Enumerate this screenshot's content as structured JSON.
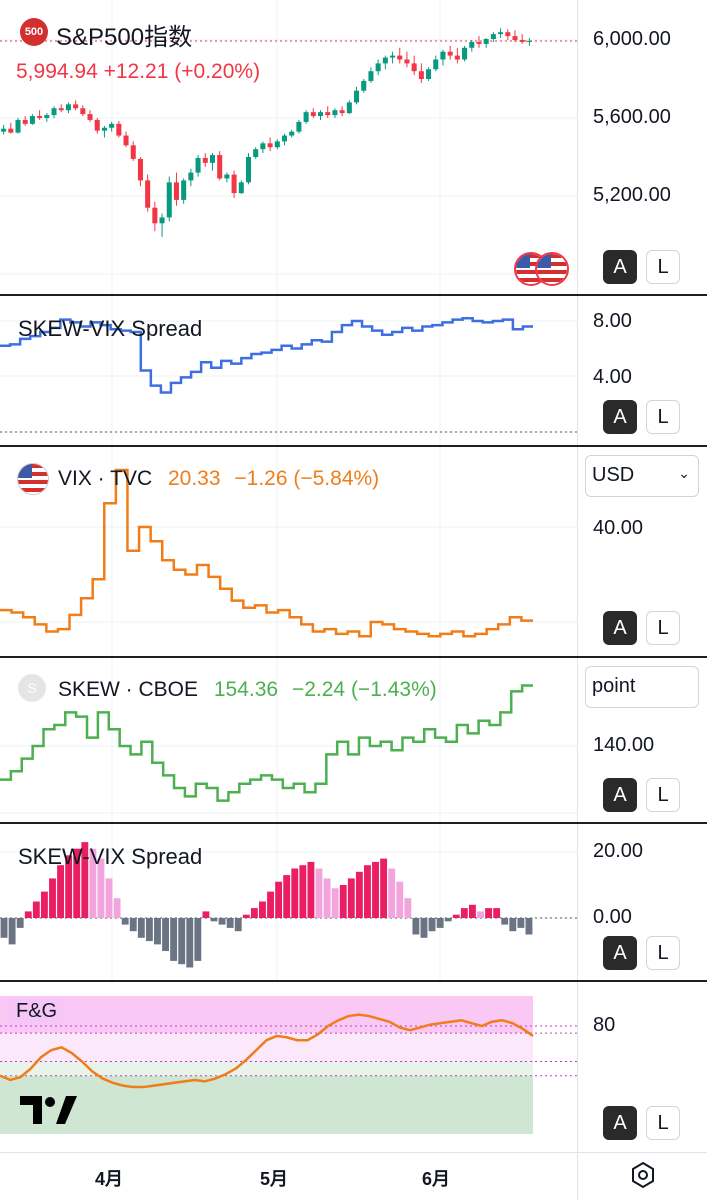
{
  "main": {
    "badge": "500",
    "title": "S&P500指数",
    "last": "5,994.94",
    "change": "+12.21",
    "change_pct": "(+0.20%)",
    "axis_labels": [
      "6,000.00",
      "5,600.00",
      "5,200.00"
    ],
    "candles": [
      [
        5530,
        5565,
        5515,
        5545
      ],
      [
        5545,
        5575,
        5520,
        5525
      ],
      [
        5525,
        5600,
        5520,
        5590
      ],
      [
        5590,
        5610,
        5560,
        5570
      ],
      [
        5570,
        5620,
        5565,
        5610
      ],
      [
        5610,
        5640,
        5590,
        5600
      ],
      [
        5600,
        5625,
        5580,
        5615
      ],
      [
        5615,
        5660,
        5600,
        5650
      ],
      [
        5650,
        5670,
        5630,
        5640
      ],
      [
        5640,
        5680,
        5625,
        5670
      ],
      [
        5670,
        5690,
        5640,
        5650
      ],
      [
        5650,
        5665,
        5610,
        5620
      ],
      [
        5620,
        5640,
        5580,
        5590
      ],
      [
        5590,
        5600,
        5520,
        5535
      ],
      [
        5535,
        5560,
        5500,
        5550
      ],
      [
        5550,
        5580,
        5530,
        5570
      ],
      [
        5570,
        5585,
        5500,
        5510
      ],
      [
        5510,
        5530,
        5450,
        5460
      ],
      [
        5460,
        5480,
        5380,
        5390
      ],
      [
        5390,
        5400,
        5250,
        5280
      ],
      [
        5280,
        5310,
        5120,
        5140
      ],
      [
        5140,
        5170,
        5020,
        5060
      ],
      [
        5060,
        5110,
        4990,
        5090
      ],
      [
        5090,
        5300,
        5070,
        5270
      ],
      [
        5270,
        5320,
        5150,
        5180
      ],
      [
        5180,
        5290,
        5160,
        5280
      ],
      [
        5280,
        5340,
        5250,
        5320
      ],
      [
        5320,
        5410,
        5300,
        5395
      ],
      [
        5395,
        5420,
        5350,
        5370
      ],
      [
        5370,
        5420,
        5330,
        5410
      ],
      [
        5410,
        5430,
        5280,
        5290
      ],
      [
        5290,
        5320,
        5270,
        5310
      ],
      [
        5310,
        5330,
        5190,
        5215
      ],
      [
        5215,
        5280,
        5210,
        5270
      ],
      [
        5270,
        5420,
        5260,
        5400
      ],
      [
        5400,
        5450,
        5390,
        5440
      ],
      [
        5440,
        5480,
        5420,
        5470
      ],
      [
        5470,
        5500,
        5430,
        5450
      ],
      [
        5450,
        5490,
        5440,
        5480
      ],
      [
        5480,
        5520,
        5460,
        5510
      ],
      [
        5510,
        5540,
        5500,
        5530
      ],
      [
        5530,
        5590,
        5520,
        5580
      ],
      [
        5580,
        5640,
        5570,
        5630
      ],
      [
        5630,
        5650,
        5600,
        5610
      ],
      [
        5610,
        5640,
        5590,
        5630
      ],
      [
        5630,
        5660,
        5600,
        5615
      ],
      [
        5615,
        5650,
        5600,
        5640
      ],
      [
        5640,
        5660,
        5610,
        5625
      ],
      [
        5625,
        5690,
        5620,
        5680
      ],
      [
        5680,
        5760,
        5670,
        5740
      ],
      [
        5740,
        5800,
        5730,
        5790
      ],
      [
        5790,
        5860,
        5780,
        5840
      ],
      [
        5840,
        5900,
        5820,
        5880
      ],
      [
        5880,
        5920,
        5850,
        5910
      ],
      [
        5910,
        5940,
        5880,
        5920
      ],
      [
        5920,
        5960,
        5880,
        5900
      ],
      [
        5900,
        5940,
        5860,
        5880
      ],
      [
        5880,
        5920,
        5820,
        5840
      ],
      [
        5840,
        5880,
        5780,
        5800
      ],
      [
        5800,
        5860,
        5790,
        5850
      ],
      [
        5850,
        5920,
        5840,
        5900
      ],
      [
        5900,
        5950,
        5870,
        5940
      ],
      [
        5940,
        5970,
        5900,
        5920
      ],
      [
        5920,
        5960,
        5880,
        5900
      ],
      [
        5900,
        5970,
        5890,
        5960
      ],
      [
        5960,
        6000,
        5940,
        5990
      ],
      [
        5990,
        6020,
        5960,
        5980
      ],
      [
        5980,
        6010,
        5960,
        6005
      ],
      [
        6005,
        6040,
        5990,
        6030
      ],
      [
        6030,
        6060,
        6010,
        6040
      ],
      [
        6040,
        6055,
        6000,
        6020
      ],
      [
        6020,
        6050,
        5990,
        6000
      ],
      [
        6000,
        6030,
        5980,
        5990
      ],
      [
        5990,
        6010,
        5970,
        5995
      ]
    ]
  },
  "spread1": {
    "title": "SKEW-VIX Spread",
    "axis_labels": [
      "8.00",
      "4.00"
    ],
    "values": [
      6.2,
      6.3,
      6.7,
      6.9,
      7.2,
      7.5,
      8.1,
      7.9,
      7.6,
      7.9,
      7.7,
      7.4,
      7.3,
      7.2,
      4.4,
      3.3,
      2.8,
      3.5,
      3.9,
      4.3,
      5.0,
      4.6,
      5.1,
      4.9,
      5.3,
      5.6,
      5.7,
      5.9,
      6.2,
      6.0,
      6.3,
      6.6,
      6.5,
      7.2,
      7.7,
      8.0,
      7.6,
      7.3,
      7.0,
      7.2,
      7.5,
      7.3,
      7.6,
      7.7,
      7.9,
      8.1,
      8.2,
      8.0,
      7.9,
      8.0,
      8.1,
      7.4,
      7.6
    ]
  },
  "vix": {
    "name": "VIX · TVC",
    "last": "20.33",
    "change": "−1.26",
    "change_pct": "(−5.84%)",
    "unit": "USD",
    "axis_labels": [
      "40.00"
    ],
    "values": [
      22.5,
      22.0,
      21.0,
      19.5,
      18.0,
      18.5,
      21.5,
      25.0,
      29.0,
      45.0,
      52.0,
      35.0,
      40.0,
      37.0,
      33.0,
      31.0,
      30.0,
      32.0,
      29.5,
      27.0,
      24.5,
      23.0,
      23.5,
      22.0,
      22.5,
      21.0,
      19.5,
      18.0,
      18.5,
      17.5,
      18.0,
      17.0,
      20.0,
      19.5,
      18.5,
      18.0,
      17.5,
      17.0,
      17.5,
      18.0,
      17.0,
      17.5,
      18.5,
      19.5,
      21.0,
      20.3
    ]
  },
  "skew": {
    "icon_letter": "S",
    "name": "SKEW · CBOE",
    "last": "154.36",
    "change": "−2.24",
    "change_pct": "(−1.43%)",
    "unit": "point",
    "axis_labels": [
      "140.00"
    ],
    "values": [
      132,
      134,
      137,
      140,
      144,
      145,
      148,
      147,
      142,
      148,
      144,
      140,
      138,
      141,
      136,
      133,
      130,
      128,
      131,
      130,
      127,
      129,
      131,
      132,
      133,
      132,
      130,
      131,
      129,
      131,
      138,
      141,
      138,
      142,
      140,
      141,
      139,
      142,
      141,
      144,
      142,
      141,
      145,
      143,
      146,
      145,
      148,
      153,
      154.4
    ]
  },
  "spread2": {
    "title": "SKEW-VIX Spread",
    "axis_labels": [
      "20.00",
      "0.00"
    ],
    "values": [
      -6,
      -8,
      -3,
      2,
      5,
      8,
      12,
      16,
      19,
      21,
      23,
      21,
      18,
      12,
      6,
      -2,
      -4,
      -6,
      -7,
      -8,
      -10,
      -13,
      -14,
      -15,
      -13,
      2,
      -1,
      -2,
      -3,
      -4,
      1,
      3,
      5,
      8,
      11,
      13,
      15,
      16,
      17,
      15,
      12,
      9,
      10,
      12,
      14,
      16,
      17,
      18,
      15,
      11,
      6,
      -5,
      -6,
      -4,
      -3,
      -1,
      1,
      3,
      4,
      2,
      3,
      3,
      -2,
      -4,
      -3,
      -5
    ]
  },
  "fg": {
    "title": "F&G",
    "axis_labels": [
      "80"
    ],
    "values": [
      45,
      42,
      44,
      50,
      58,
      63,
      65,
      61,
      55,
      48,
      43,
      40,
      38,
      37,
      37,
      38,
      39,
      40,
      41,
      42,
      41,
      43,
      46,
      50,
      56,
      63,
      70,
      73,
      72,
      70,
      70,
      74,
      80,
      84,
      87,
      88,
      87,
      85,
      83,
      79,
      77,
      79,
      81,
      82,
      83,
      84,
      82,
      80,
      83,
      84,
      82,
      78,
      73
    ]
  },
  "xaxis": {
    "labels": [
      "4月",
      "5月",
      "6月"
    ]
  },
  "colors": {
    "up": "#089981",
    "down": "#f23645",
    "spread_line": "#3d6fe0",
    "vix": "#f07d19",
    "skew": "#4caf50",
    "hist_pos_strong": "#e91e63",
    "hist_pos_light": "#f2a4dd",
    "hist_neg": "#6b7482",
    "fg_line": "#f07d19"
  },
  "buttons": {
    "a": "A",
    "l": "L"
  },
  "icons": {
    "settings": "gear-icon",
    "logo": "tradingview-logo"
  }
}
